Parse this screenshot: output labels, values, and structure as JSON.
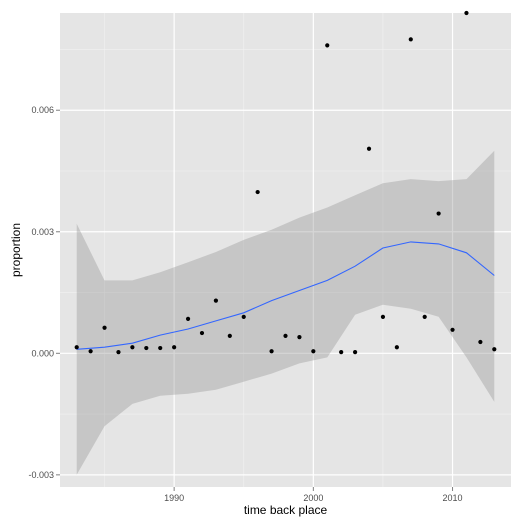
{
  "chart_data": {
    "type": "scatter",
    "title": "",
    "xlabel": "time back place",
    "ylabel": "proportion",
    "xlim": [
      1981.8,
      2014.2
    ],
    "ylim": [
      -0.0033,
      0.0084
    ],
    "x_ticks": [
      1990,
      2000,
      2010
    ],
    "x_tick_labels": [
      "1990",
      "2000",
      "2010"
    ],
    "x_minor_ticks": [
      1985,
      1995,
      2005
    ],
    "y_ticks": [
      -0.003,
      0.0,
      0.003,
      0.006
    ],
    "y_tick_labels": [
      "-0.003",
      "0.000",
      "0.003",
      "0.006"
    ],
    "y_minor_ticks": [
      -0.0015,
      0.0015,
      0.0045,
      0.0075
    ],
    "grid": true,
    "legend": "none",
    "points": [
      {
        "x": 1983,
        "y": 0.00015
      },
      {
        "x": 1984,
        "y": 5e-05
      },
      {
        "x": 1985,
        "y": 0.00063
      },
      {
        "x": 1986,
        "y": 3e-05
      },
      {
        "x": 1987,
        "y": 0.00015
      },
      {
        "x": 1988,
        "y": 0.00013
      },
      {
        "x": 1989,
        "y": 0.00013
      },
      {
        "x": 1990,
        "y": 0.00015
      },
      {
        "x": 1991,
        "y": 0.00085
      },
      {
        "x": 1992,
        "y": 0.0005
      },
      {
        "x": 1993,
        "y": 0.0013
      },
      {
        "x": 1994,
        "y": 0.00043
      },
      {
        "x": 1995,
        "y": 0.0009
      },
      {
        "x": 1996,
        "y": 0.00398
      },
      {
        "x": 1997,
        "y": 5e-05
      },
      {
        "x": 1998,
        "y": 0.00043
      },
      {
        "x": 1999,
        "y": 0.0004
      },
      {
        "x": 2000,
        "y": 5e-05
      },
      {
        "x": 2001,
        "y": 0.0076
      },
      {
        "x": 2002,
        "y": 3e-05
      },
      {
        "x": 2003,
        "y": 3e-05
      },
      {
        "x": 2004,
        "y": 0.00505
      },
      {
        "x": 2005,
        "y": 0.0009
      },
      {
        "x": 2006,
        "y": 0.00015
      },
      {
        "x": 2007,
        "y": 0.00775
      },
      {
        "x": 2008,
        "y": 0.0009
      },
      {
        "x": 2009,
        "y": 0.00345
      },
      {
        "x": 2010,
        "y": 0.00058
      },
      {
        "x": 2011,
        "y": 0.0084
      },
      {
        "x": 2012,
        "y": 0.00028
      },
      {
        "x": 2013,
        "y": 0.0001
      }
    ],
    "smooth": {
      "method": "loess",
      "x": [
        1983,
        1985,
        1987,
        1989,
        1991,
        1993,
        1995,
        1997,
        1999,
        2001,
        2003,
        2005,
        2007,
        2009,
        2011,
        2013
      ],
      "fit": [
        0.0001,
        0.00015,
        0.00025,
        0.00045,
        0.0006,
        0.0008,
        0.001,
        0.0013,
        0.00155,
        0.0018,
        0.00215,
        0.0026,
        0.00275,
        0.0027,
        0.00248,
        0.00192
      ],
      "lower": [
        -0.003,
        -0.0018,
        -0.00125,
        -0.00105,
        -0.001,
        -0.0009,
        -0.0007,
        -0.0005,
        -0.00025,
        -0.0001,
        0.00095,
        0.0012,
        0.0011,
        0.0009,
        -0.0001,
        -0.0012
      ],
      "upper": [
        0.0032,
        0.0018,
        0.0018,
        0.002,
        0.00225,
        0.0025,
        0.0028,
        0.00305,
        0.00335,
        0.0036,
        0.0039,
        0.0042,
        0.0043,
        0.00425,
        0.0043,
        0.005
      ]
    },
    "colors": {
      "panel": "#e5e5e5",
      "grid_major": "#ffffff",
      "grid_minor": "#f2f2f2",
      "points": "#000000",
      "ribbon": "#999999",
      "line": "#3366ff"
    }
  }
}
